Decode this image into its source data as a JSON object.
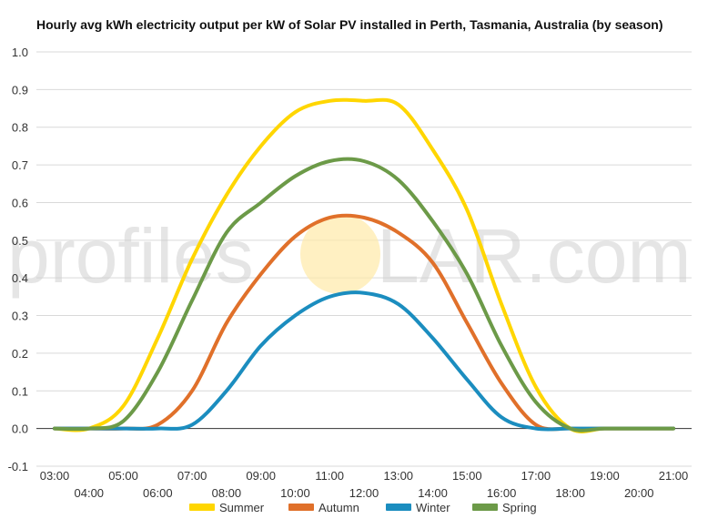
{
  "chart_data": {
    "type": "line",
    "title": "Hourly avg kWh electricity output per kW of Solar PV installed in Perth, Tasmania, Australia (by season)",
    "xlabel": "",
    "ylabel": "",
    "x": [
      "03:00",
      "04:00",
      "05:00",
      "06:00",
      "07:00",
      "08:00",
      "09:00",
      "10:00",
      "11:00",
      "12:00",
      "13:00",
      "14:00",
      "15:00",
      "16:00",
      "17:00",
      "18:00",
      "19:00",
      "20:00",
      "21:00"
    ],
    "ylim": [
      -0.1,
      1.0
    ],
    "yticks": [
      "-0.1",
      "0.0",
      "0.1",
      "0.2",
      "0.3",
      "0.4",
      "0.5",
      "0.6",
      "0.7",
      "0.8",
      "0.9",
      "1.0"
    ],
    "grid": true,
    "legend_position": "bottom",
    "series": [
      {
        "name": "Summer",
        "color": "#FFD600",
        "values": [
          0.0,
          0.0,
          0.06,
          0.24,
          0.45,
          0.62,
          0.75,
          0.84,
          0.87,
          0.87,
          0.86,
          0.74,
          0.58,
          0.33,
          0.11,
          0.0,
          0.0,
          0.0,
          0.0
        ]
      },
      {
        "name": "Autumn",
        "color": "#E0702A",
        "values": [
          0.0,
          0.0,
          0.0,
          0.01,
          0.1,
          0.28,
          0.41,
          0.51,
          0.56,
          0.56,
          0.52,
          0.44,
          0.28,
          0.12,
          0.01,
          0.0,
          0.0,
          0.0,
          0.0
        ]
      },
      {
        "name": "Winter",
        "color": "#1B8DBF",
        "values": [
          0.0,
          0.0,
          0.0,
          0.0,
          0.01,
          0.1,
          0.22,
          0.3,
          0.35,
          0.36,
          0.33,
          0.24,
          0.13,
          0.03,
          0.0,
          0.0,
          0.0,
          0.0,
          0.0
        ]
      },
      {
        "name": "Spring",
        "color": "#6C9A48",
        "values": [
          0.0,
          0.0,
          0.02,
          0.15,
          0.34,
          0.52,
          0.6,
          0.67,
          0.71,
          0.71,
          0.66,
          0.55,
          0.41,
          0.22,
          0.07,
          0.0,
          0.0,
          0.0,
          0.0
        ]
      }
    ]
  },
  "watermark": {
    "left": "profiles",
    "right": "LAR.com",
    "sun_color": "#FFE9A8"
  }
}
